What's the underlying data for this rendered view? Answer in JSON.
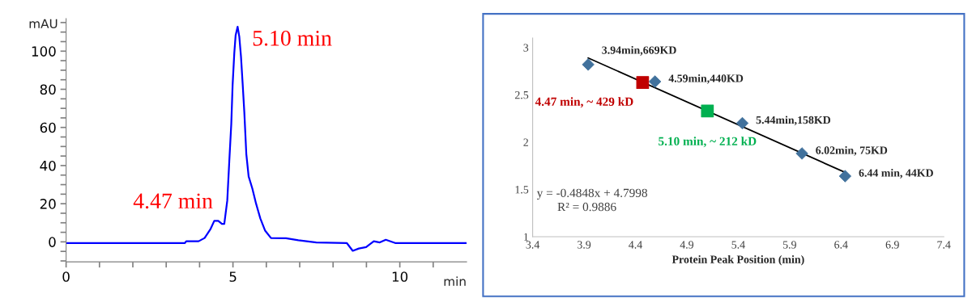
{
  "chart_data": [
    {
      "type": "line",
      "xlabel": "min",
      "ylabel": "mAU",
      "x": [
        0,
        3.56,
        3.6,
        3.97,
        4.15,
        4.33,
        4.44,
        4.56,
        4.67,
        4.74,
        4.83,
        4.89,
        4.95,
        4.99,
        5.04,
        5.08,
        5.14,
        5.19,
        5.24,
        5.29,
        5.34,
        5.4,
        5.47,
        5.58,
        5.69,
        5.82,
        5.96,
        6.14,
        6.59,
        6.96,
        7.5,
        8.41,
        8.59,
        8.77,
        8.99,
        9.22,
        9.4,
        9.58,
        9.86,
        12.0
      ],
      "series": [
        {
          "color": "#0000ff",
          "values": [
            -0.6,
            -0.6,
            0.3,
            0.3,
            2,
            6.8,
            11,
            11,
            9.4,
            9.4,
            21.7,
            42.2,
            61.9,
            82.4,
            98.9,
            108.3,
            112.8,
            107.6,
            97.3,
            83.1,
            68.2,
            46.1,
            34.3,
            28,
            20.2,
            12.3,
            6,
            2,
            1.9,
            0.8,
            -0.3,
            -0.6,
            -4.7,
            -3.5,
            -2.8,
            0.3,
            -0.3,
            1.1,
            -0.6,
            -0.6
          ]
        }
      ],
      "annotations": [
        {
          "text": "5.10 min",
          "x": 5.1,
          "y": 112.8
        },
        {
          "text": "4.47 min",
          "x": 4.47,
          "y": 11
        }
      ],
      "xlim": [
        0,
        12
      ],
      "xticks": [
        0,
        {
          "value": 1,
          "label": null
        },
        {
          "value": 2,
          "label": null
        },
        {
          "value": 3,
          "label": null
        },
        {
          "value": 4,
          "label": null
        },
        5,
        {
          "value": 6,
          "label": null
        },
        {
          "value": 7,
          "label": null
        },
        {
          "value": 8,
          "label": null
        },
        {
          "value": 9,
          "label": null
        },
        10,
        {
          "value": 11,
          "label": null
        }
      ],
      "ylim": [
        -10.5,
        117
      ],
      "yticks": [
        {
          "value": -10,
          "label": null
        },
        {
          "value": -5,
          "label": null
        },
        0,
        {
          "value": 5,
          "label": null
        },
        {
          "value": 10,
          "label": null
        },
        {
          "value": 15,
          "label": null
        },
        20,
        {
          "value": 25,
          "label": null
        },
        {
          "value": 30,
          "label": null
        },
        {
          "value": 35,
          "label": null
        },
        40,
        {
          "value": 45,
          "label": null
        },
        {
          "value": 50,
          "label": null
        },
        {
          "value": 55,
          "label": null
        },
        60,
        {
          "value": 65,
          "label": null
        },
        {
          "value": 70,
          "label": null
        },
        {
          "value": 75,
          "label": null
        },
        80,
        {
          "value": 85,
          "label": null
        },
        {
          "value": 90,
          "label": null
        },
        {
          "value": 95,
          "label": null
        },
        100,
        {
          "value": 105,
          "label": null
        },
        {
          "value": 110,
          "label": null
        },
        {
          "value": 115,
          "label": null
        }
      ],
      "grid": false,
      "legend": false
    },
    {
      "type": "scatter",
      "xlabel": "Protein Peak Position (min)",
      "series": [
        {
          "type": "scatter",
          "marker": "diamond",
          "color": "#41719c",
          "x": [
            3.94,
            4.59,
            5.44,
            6.02,
            6.44
          ],
          "values": [
            2.82,
            2.64,
            2.2,
            1.88,
            1.64
          ],
          "value_labels": [
            "3.94min,669KD",
            "4.59min,440KD",
            "5.44min,158KD",
            "6.02min, 75KD",
            "6.44 min, 44KD"
          ]
        },
        {
          "type": "line",
          "marker": "none",
          "color": "#000000",
          "x": [
            3.94,
            6.44
          ],
          "values": [
            2.89,
            1.68
          ]
        },
        {
          "type": "scatter",
          "marker": "square",
          "name": "4.47 min, ~ 429 kD",
          "color": "#c00000",
          "x": [
            4.47
          ],
          "values": [
            2.63
          ]
        },
        {
          "type": "scatter",
          "marker": "square",
          "name": "5.10 min, ~ 212 kD",
          "color": "#00b050",
          "x": [
            5.1
          ],
          "values": [
            2.33
          ]
        }
      ],
      "annotations": [
        "y = -0.4848x + 4.7998",
        "R² = 0.9886"
      ],
      "xlim": [
        3.4,
        7.4
      ],
      "xticks": [
        3.4,
        3.9,
        4.4,
        4.9,
        5.4,
        5.9,
        6.4,
        6.9,
        7.4
      ],
      "ylim": [
        1,
        3.1
      ],
      "yticks": [
        1,
        1.5,
        2,
        2.5,
        3
      ],
      "grid": false,
      "legend": false
    }
  ]
}
